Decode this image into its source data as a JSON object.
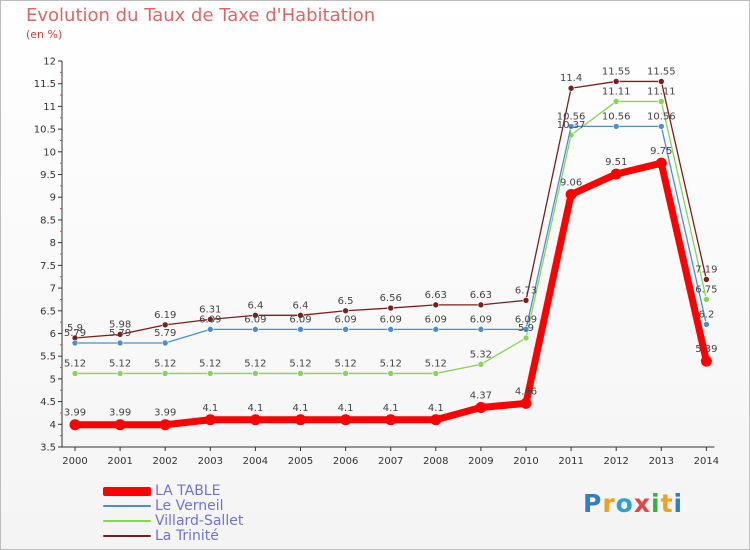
{
  "title": "Evolution du Taux de Taxe d'Habitation",
  "subtitle": "(en %)",
  "brand": {
    "text": "Proxiti",
    "letters": [
      {
        "ch": "P",
        "color": "#2f7fc8"
      },
      {
        "ch": "r",
        "color": "#f0a020"
      },
      {
        "ch": "o",
        "color": "#2f9fd8"
      },
      {
        "ch": "x",
        "color": "#e64545"
      },
      {
        "ch": "i",
        "color": "#3ab03a"
      },
      {
        "ch": "t",
        "color": "#f0a020"
      },
      {
        "ch": "i",
        "color": "#2f7fc8"
      }
    ]
  },
  "chart_data": {
    "type": "line",
    "title": "Evolution du Taux de Taxe d'Habitation",
    "subtitle": "(en %)",
    "xlabel": "",
    "ylabel": "",
    "x": [
      "2000",
      "2001",
      "2002",
      "2003",
      "2004",
      "2005",
      "2006",
      "2007",
      "2008",
      "2009",
      "2010",
      "2011",
      "2012",
      "2013",
      "2014"
    ],
    "ylim": [
      3.5,
      12
    ],
    "yticks": [
      "3.5",
      "4",
      "4.5",
      "5",
      "5.5",
      "6",
      "6.5",
      "7",
      "7.5",
      "8",
      "8.5",
      "9",
      "9.5",
      "10",
      "10.5",
      "11",
      "11.5",
      "12"
    ],
    "grid": false,
    "legend_position": "bottom-left",
    "series": [
      {
        "name": "La Trinité",
        "color": "#7a1f1f",
        "values": [
          5.9,
          5.98,
          6.19,
          6.31,
          6.4,
          6.4,
          6.5,
          6.56,
          6.63,
          6.63,
          6.73,
          11.4,
          11.55,
          11.55,
          7.19
        ],
        "labels": [
          "5.9",
          "5.98",
          "6.19",
          "6.31",
          "6.4",
          "6.4",
          "6.5",
          "6.56",
          "6.63",
          "6.63",
          "6.73",
          "11.4",
          "11.55",
          "11.55",
          "7.19"
        ]
      },
      {
        "name": "Villard-Sallet",
        "color": "#88d455",
        "values": [
          5.12,
          5.12,
          5.12,
          5.12,
          5.12,
          5.12,
          5.12,
          5.12,
          5.12,
          5.32,
          5.9,
          10.37,
          11.11,
          11.11,
          6.75
        ],
        "labels": [
          "5.12",
          "5.12",
          "5.12",
          "5.12",
          "5.12",
          "5.12",
          "5.12",
          "5.12",
          "5.12",
          "5.32",
          "5.9",
          "10.37",
          "11.11",
          "11.11",
          "6.75"
        ]
      },
      {
        "name": "Le Verneil",
        "color": "#4a90cf",
        "values": [
          5.79,
          5.79,
          5.79,
          6.09,
          6.09,
          6.09,
          6.09,
          6.09,
          6.09,
          6.09,
          6.09,
          10.56,
          10.56,
          10.56,
          6.2
        ],
        "labels": [
          "5.79",
          "5.79",
          "5.79",
          "6.09",
          "6.09",
          "6.09",
          "6.09",
          "6.09",
          "6.09",
          "6.09",
          "6.09",
          "10.56",
          "10.56",
          "10.56",
          "6.2"
        ]
      },
      {
        "name": "LA TABLE",
        "color": "#ff0000",
        "values": [
          3.99,
          3.99,
          3.99,
          4.1,
          4.1,
          4.1,
          4.1,
          4.1,
          4.1,
          4.37,
          4.46,
          9.06,
          9.51,
          9.75,
          5.39
        ],
        "labels": [
          "3.99",
          "3.99",
          "3.99",
          "4.1",
          "4.1",
          "4.1",
          "4.1",
          "4.1",
          "4.1",
          "4.37",
          "4.46",
          "9.06",
          "9.51",
          "9.75",
          "5.39"
        ]
      }
    ],
    "legend": [
      {
        "name": "LA TABLE",
        "color": "#ff0000"
      },
      {
        "name": "Le Verneil",
        "color": "#4a90cf"
      },
      {
        "name": "Villard-Sallet",
        "color": "#88d455"
      },
      {
        "name": "La Trinité",
        "color": "#7a1f1f"
      }
    ]
  }
}
